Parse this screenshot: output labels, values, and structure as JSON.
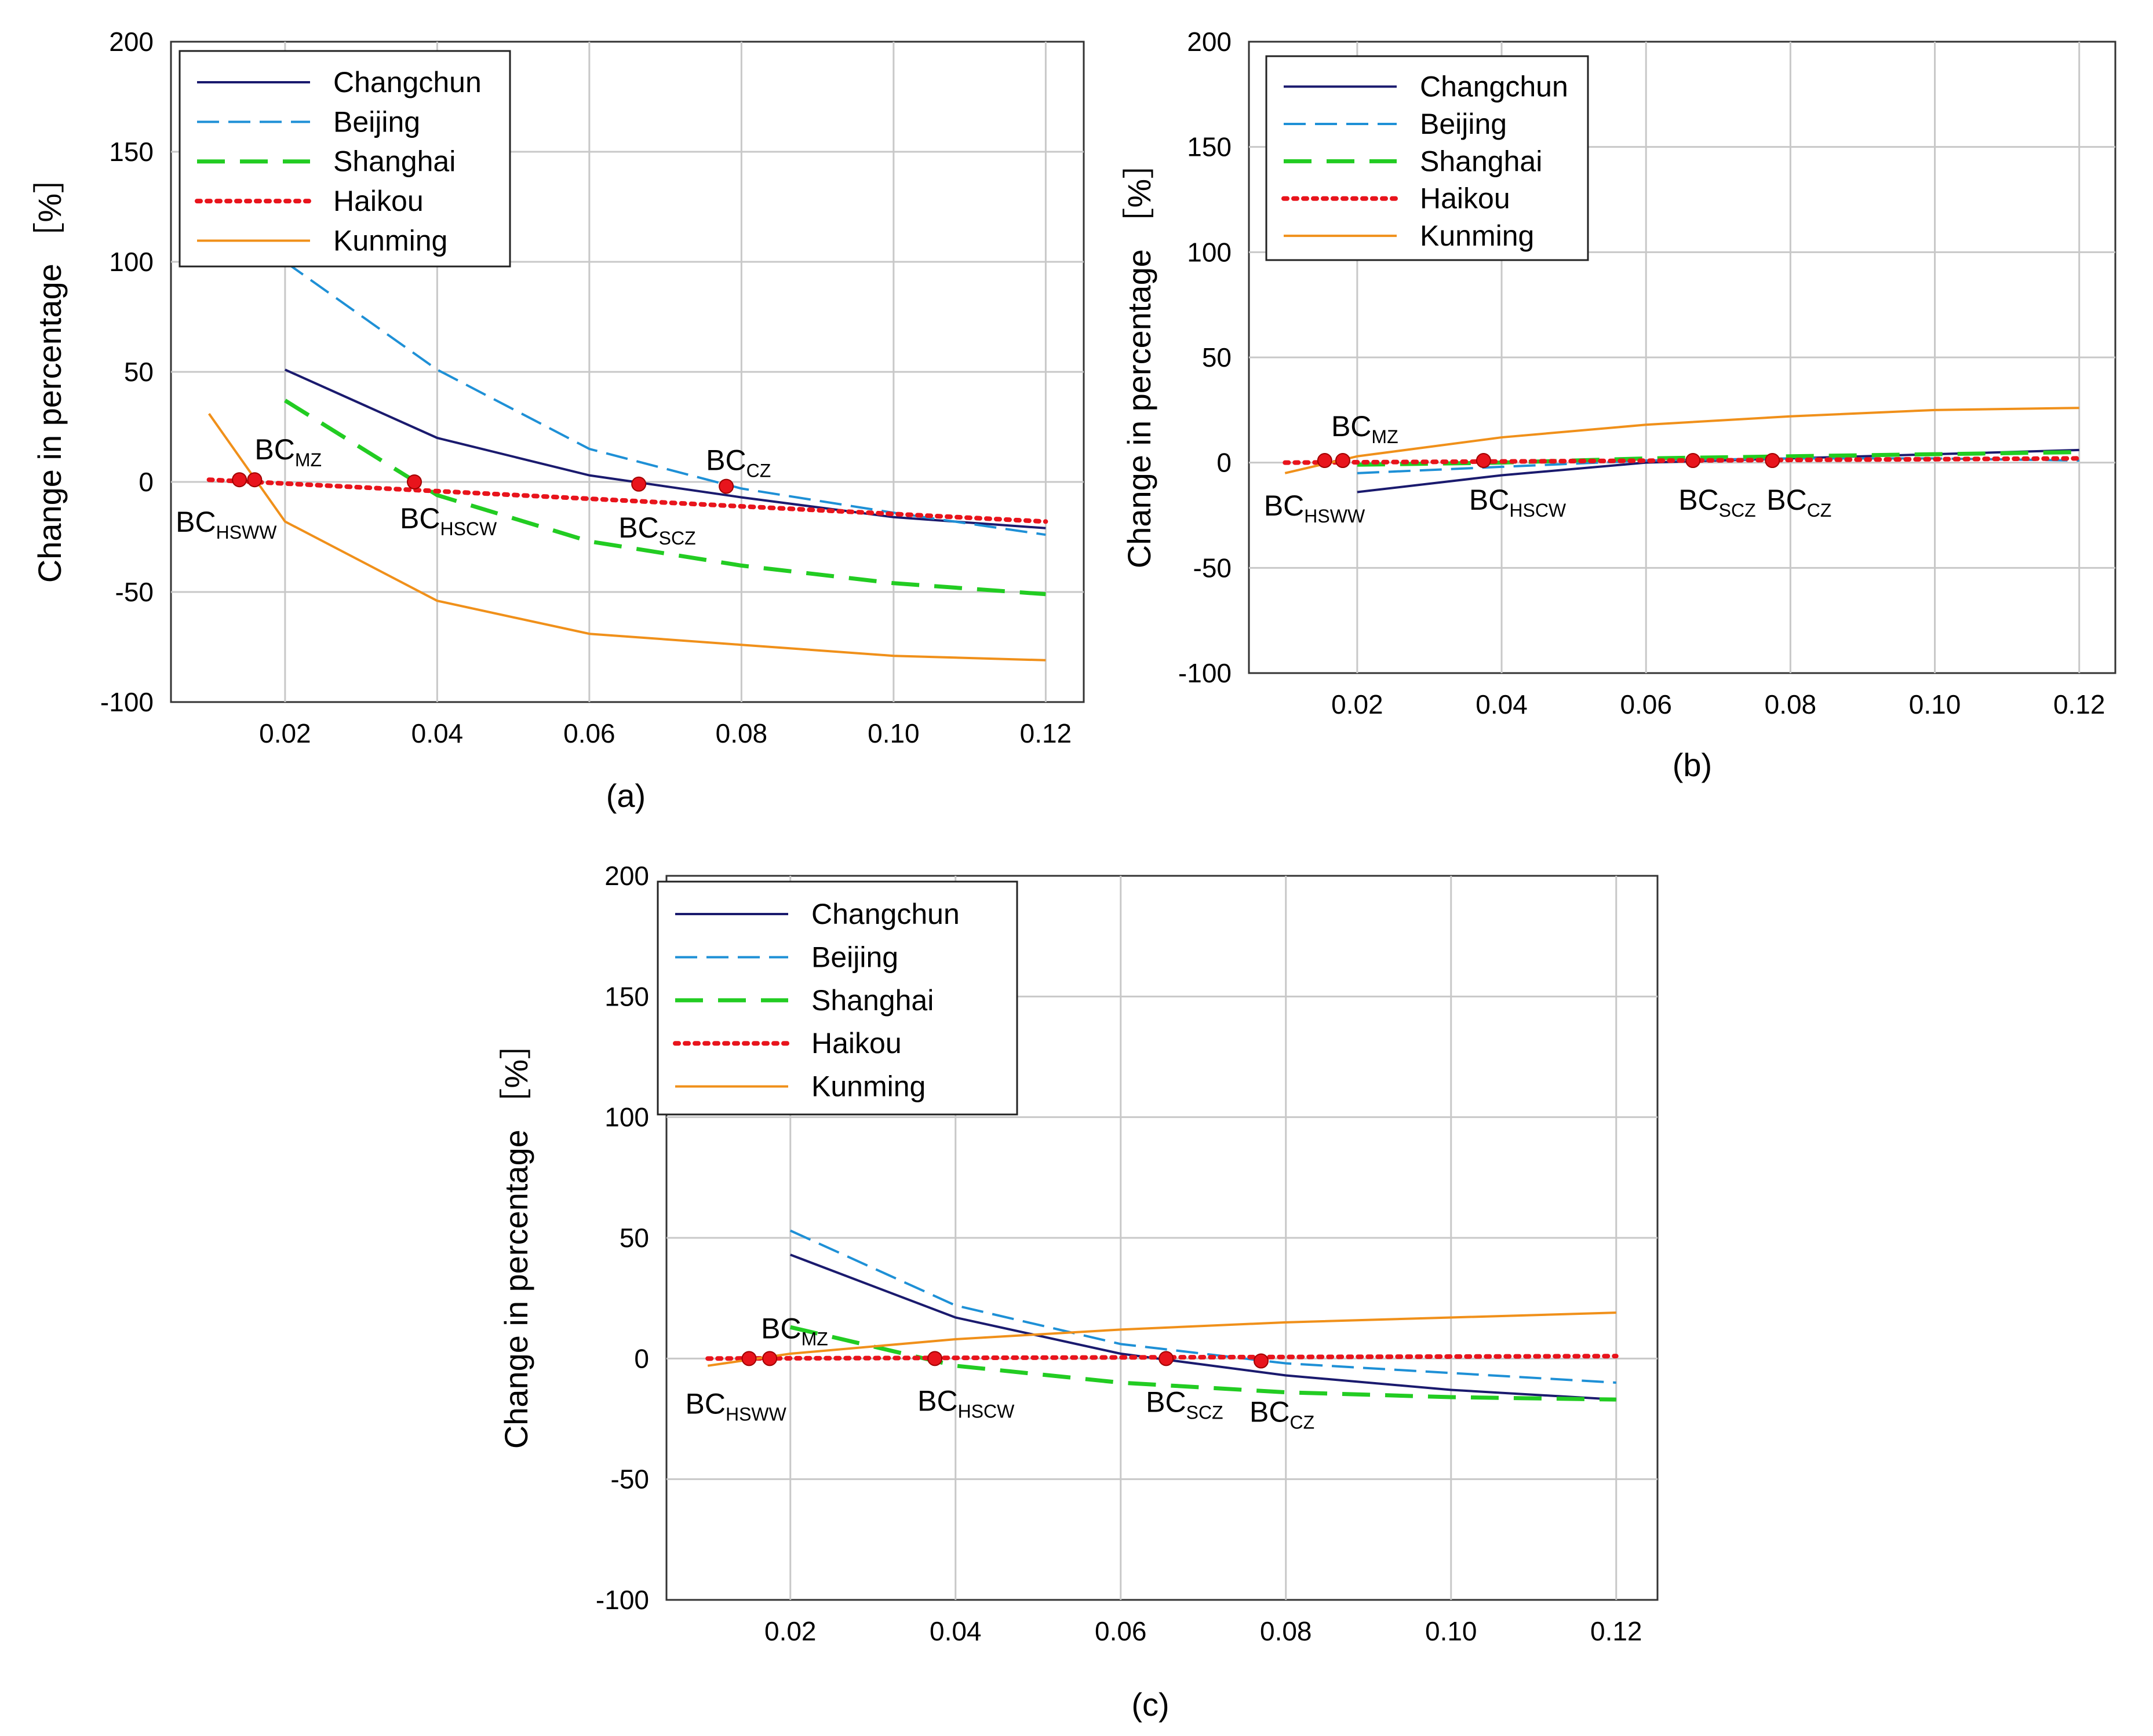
{
  "chart_data": [
    {
      "type": "line",
      "caption": "(a)",
      "ylabel": "Change in percentage ［%］",
      "xlim": [
        0.005,
        0.125
      ],
      "ylim": [
        -100,
        200
      ],
      "xticks": [
        "0.02",
        "0.04",
        "0.06",
        "0.08",
        "0.10",
        "0.12"
      ],
      "yticks": [
        "200",
        "150",
        "100",
        "50",
        "0",
        "-50",
        "-100"
      ],
      "grid": true,
      "legend_position": "top-left",
      "series": [
        {
          "name": "Changchun",
          "color": "#1a1a6e",
          "style": "solid",
          "x": [
            0.02,
            0.04,
            0.06,
            0.08,
            0.1,
            0.12
          ],
          "y": [
            51,
            20,
            3,
            -7,
            -16,
            -21
          ]
        },
        {
          "name": "Beijing",
          "color": "#1e90d6",
          "style": "dashed",
          "x": [
            0.02,
            0.04,
            0.06,
            0.08,
            0.1,
            0.12
          ],
          "y": [
            100,
            51,
            15,
            -3,
            -14,
            -24
          ]
        },
        {
          "name": "Shanghai",
          "color": "#22cc22",
          "style": "longdash",
          "x": [
            0.02,
            0.04,
            0.06,
            0.08,
            0.1,
            0.12
          ],
          "y": [
            37,
            -6,
            -27,
            -38,
            -46,
            -51
          ]
        },
        {
          "name": "Haikou",
          "color": "#e8141c",
          "style": "dotted",
          "x": [
            0.01,
            0.12
          ],
          "y": [
            1,
            -18
          ]
        },
        {
          "name": "Kunming",
          "color": "#f0901a",
          "style": "solid",
          "x": [
            0.01,
            0.02,
            0.04,
            0.06,
            0.08,
            0.1,
            0.12
          ],
          "y": [
            31,
            -18,
            -54,
            -69,
            -74,
            -79,
            -81
          ]
        }
      ],
      "markers": [
        {
          "label": "HSWW",
          "x": 0.014,
          "y": 1
        },
        {
          "label": "MZ",
          "x": 0.016,
          "y": 1
        },
        {
          "label": "HSCW",
          "x": 0.037,
          "y": 0
        },
        {
          "label": "SCZ",
          "x": 0.0665,
          "y": -1
        },
        {
          "label": "CZ",
          "x": 0.078,
          "y": -2
        }
      ]
    },
    {
      "type": "line",
      "caption": "(b)",
      "ylabel": "Change in percentage ［%］",
      "xlim": [
        0.005,
        0.125
      ],
      "ylim": [
        -100,
        200
      ],
      "xticks": [
        "0.02",
        "0.04",
        "0.06",
        "0.08",
        "0.10",
        "0.12"
      ],
      "yticks": [
        "200",
        "150",
        "100",
        "50",
        "0",
        "-50",
        "-100"
      ],
      "grid": true,
      "legend_position": "top-left",
      "series": [
        {
          "name": "Changchun",
          "color": "#1a1a6e",
          "style": "solid",
          "x": [
            0.02,
            0.04,
            0.06,
            0.08,
            0.1,
            0.12
          ],
          "y": [
            -14,
            -6,
            0,
            2,
            4,
            6
          ]
        },
        {
          "name": "Beijing",
          "color": "#1e90d6",
          "style": "dashed",
          "x": [
            0.02,
            0.04,
            0.06,
            0.08,
            0.1,
            0.12
          ],
          "y": [
            -5,
            -2,
            1,
            2,
            2,
            1
          ]
        },
        {
          "name": "Shanghai",
          "color": "#22cc22",
          "style": "longdash",
          "x": [
            0.02,
            0.04,
            0.06,
            0.08,
            0.1,
            0.12
          ],
          "y": [
            -1,
            0,
            2,
            3,
            4,
            5
          ]
        },
        {
          "name": "Haikou",
          "color": "#e8141c",
          "style": "dotted",
          "x": [
            0.01,
            0.12
          ],
          "y": [
            0,
            2
          ]
        },
        {
          "name": "Kunming",
          "color": "#f0901a",
          "style": "solid",
          "x": [
            0.01,
            0.02,
            0.04,
            0.06,
            0.08,
            0.1,
            0.12
          ],
          "y": [
            -5,
            3,
            12,
            18,
            22,
            25,
            26
          ]
        }
      ],
      "markers": [
        {
          "label": "HSWW",
          "x": 0.0155,
          "y": 1
        },
        {
          "label": "MZ",
          "x": 0.018,
          "y": 1
        },
        {
          "label": "HSCW",
          "x": 0.0375,
          "y": 1
        },
        {
          "label": "SCZ",
          "x": 0.0665,
          "y": 1
        },
        {
          "label": "CZ",
          "x": 0.0775,
          "y": 1
        }
      ]
    },
    {
      "type": "line",
      "caption": "(c)",
      "ylabel": "Change in percentage ［%］",
      "xlim": [
        0.005,
        0.125
      ],
      "ylim": [
        -100,
        200
      ],
      "xticks": [
        "0.02",
        "0.04",
        "0.06",
        "0.08",
        "0.10",
        "0.12"
      ],
      "yticks": [
        "200",
        "150",
        "100",
        "50",
        "0",
        "-50",
        "-100"
      ],
      "grid": true,
      "legend_position": "top-left",
      "series": [
        {
          "name": "Changchun",
          "color": "#1a1a6e",
          "style": "solid",
          "x": [
            0.02,
            0.04,
            0.06,
            0.08,
            0.1,
            0.12
          ],
          "y": [
            43,
            17,
            2,
            -7,
            -13,
            -17
          ]
        },
        {
          "name": "Beijing",
          "color": "#1e90d6",
          "style": "dashed",
          "x": [
            0.02,
            0.04,
            0.06,
            0.08,
            0.1,
            0.12
          ],
          "y": [
            53,
            22,
            6,
            -2,
            -6,
            -10
          ]
        },
        {
          "name": "Shanghai",
          "color": "#22cc22",
          "style": "longdash",
          "x": [
            0.02,
            0.04,
            0.06,
            0.08,
            0.1,
            0.12
          ],
          "y": [
            13,
            -3,
            -10,
            -14,
            -16,
            -17
          ]
        },
        {
          "name": "Haikou",
          "color": "#e8141c",
          "style": "dotted",
          "x": [
            0.01,
            0.12
          ],
          "y": [
            0,
            1
          ]
        },
        {
          "name": "Kunming",
          "color": "#f0901a",
          "style": "solid",
          "x": [
            0.01,
            0.02,
            0.04,
            0.06,
            0.08,
            0.1,
            0.12
          ],
          "y": [
            -3,
            2,
            8,
            12,
            15,
            17,
            19
          ]
        }
      ],
      "markers": [
        {
          "label": "HSWW",
          "x": 0.015,
          "y": 0
        },
        {
          "label": "MZ",
          "x": 0.0175,
          "y": 0
        },
        {
          "label": "HSCW",
          "x": 0.0375,
          "y": 0
        },
        {
          "label": "SCZ",
          "x": 0.0655,
          "y": 0
        },
        {
          "label": "CZ",
          "x": 0.077,
          "y": -1
        }
      ]
    }
  ]
}
